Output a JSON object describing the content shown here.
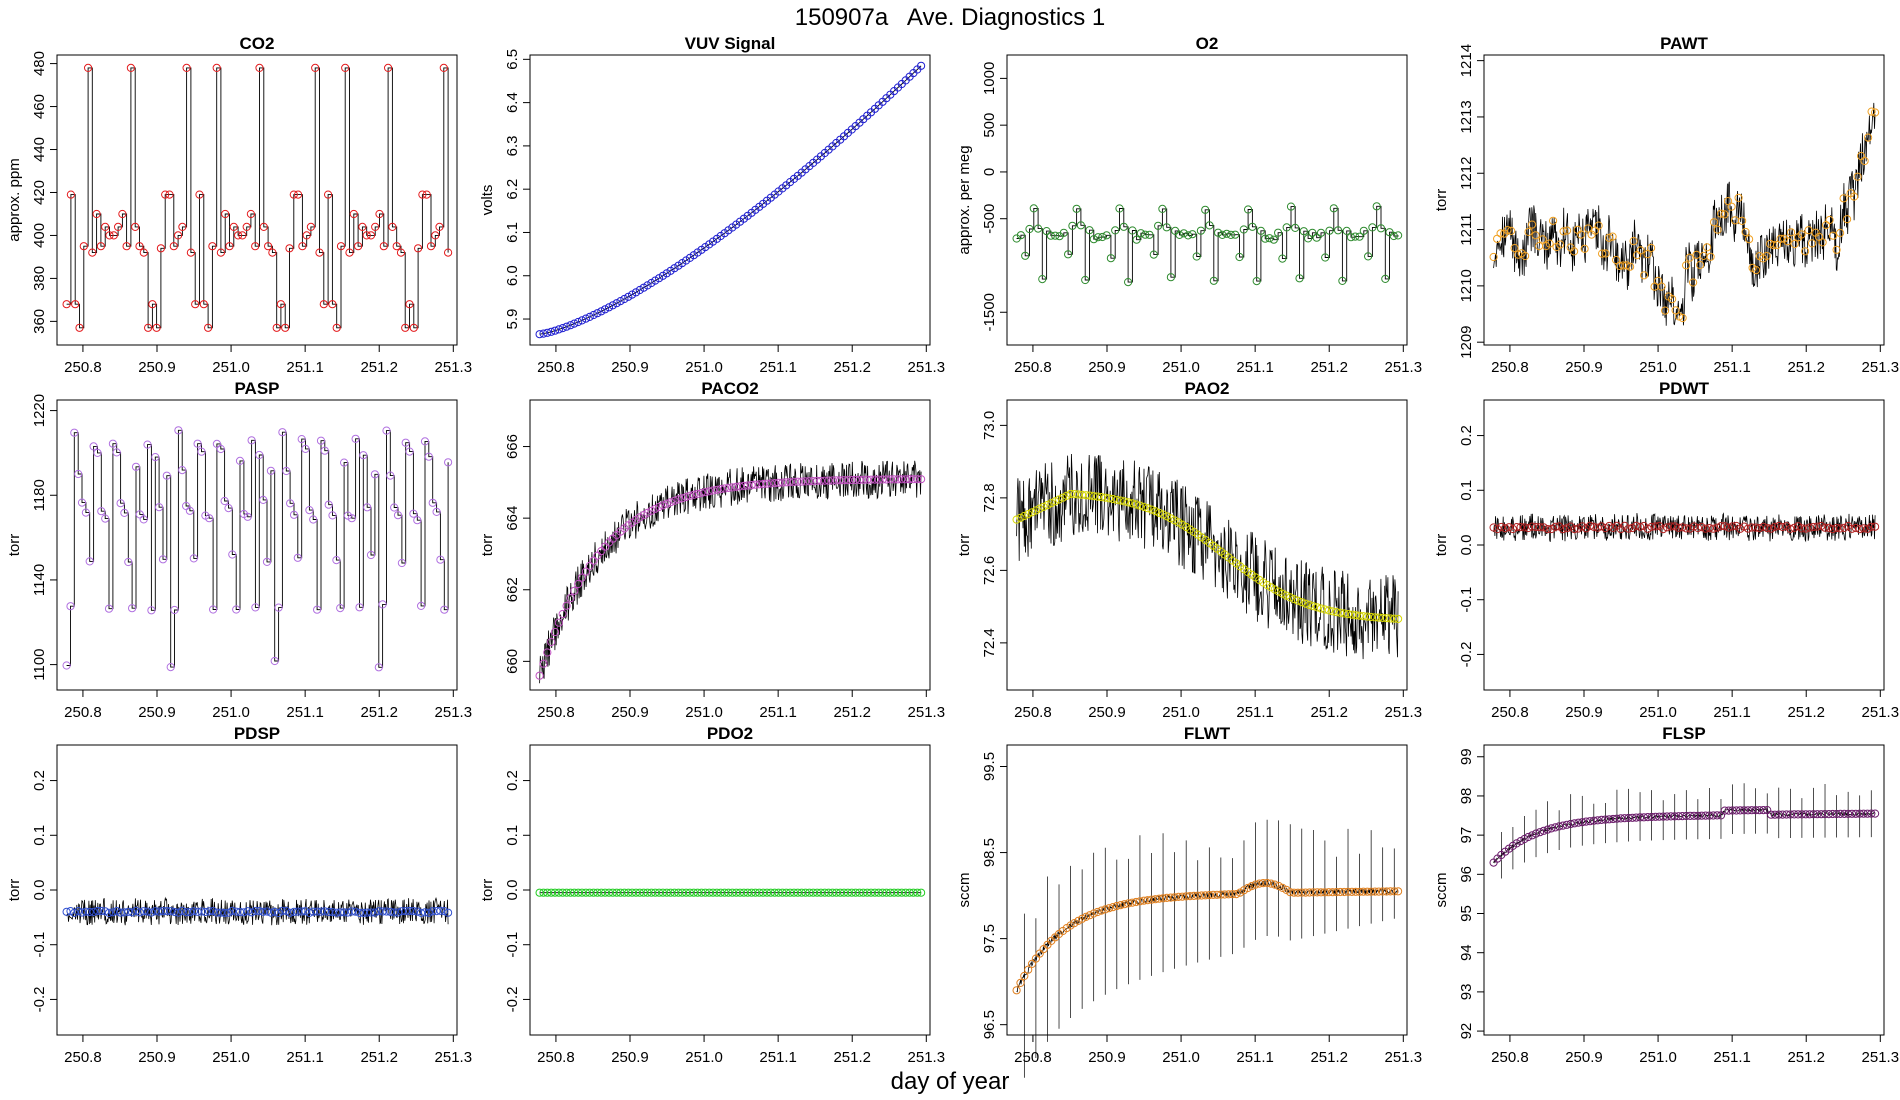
{
  "page": {
    "title": "150907a   Ave. Diagnostics 1",
    "xlabel": "day of year"
  },
  "chart_data": [
    {
      "type": "line",
      "title": "CO2",
      "ylabel": "approx. ppm",
      "xlim": [
        250.765,
        251.305
      ],
      "ylim": [
        349,
        484
      ],
      "yticks": [
        360,
        380,
        400,
        420,
        440,
        460,
        480
      ],
      "ytick_labels": [
        "360",
        "380",
        "400",
        "420",
        "440",
        "460",
        "480"
      ],
      "xticks": [
        250.8,
        250.9,
        251.0,
        251.1,
        251.2,
        251.3
      ],
      "xtick_labels": [
        "250.8",
        "250.9",
        "251.0",
        "251.1",
        "251.2",
        "251.3"
      ],
      "marker_color": "#e31a1c",
      "pattern": "co2",
      "x_start": 250.778,
      "x_end": 251.293,
      "n_points": 90
    },
    {
      "type": "line",
      "title": "VUV Signal",
      "ylabel": "volts",
      "xlim": [
        250.765,
        251.305
      ],
      "ylim": [
        5.84,
        6.51
      ],
      "yticks": [
        5.9,
        6.0,
        6.1,
        6.2,
        6.3,
        6.4,
        6.5
      ],
      "ytick_labels": [
        "5.9",
        "6.0",
        "6.1",
        "6.2",
        "6.3",
        "6.4",
        "6.5"
      ],
      "xticks": [
        250.8,
        250.9,
        251.0,
        251.1,
        251.2,
        251.3
      ],
      "xtick_labels": [
        "250.8",
        "250.9",
        "251.0",
        "251.1",
        "251.2",
        "251.3"
      ],
      "marker_color": "#1f1fd0",
      "pattern": "vuv",
      "x_start": 250.778,
      "x_end": 251.293,
      "n_points": 100
    },
    {
      "type": "line",
      "title": "O2",
      "ylabel": "approx. per meg",
      "xlim": [
        250.765,
        251.305
      ],
      "ylim": [
        -1850,
        1250
      ],
      "yticks": [
        -1500,
        -500,
        0,
        500,
        1000
      ],
      "ytick_labels": [
        "-1500",
        "-500",
        "0",
        "500",
        "1000"
      ],
      "xticks": [
        250.8,
        250.9,
        251.0,
        251.1,
        251.2,
        251.3
      ],
      "xtick_labels": [
        "250.8",
        "250.9",
        "251.0",
        "251.1",
        "251.2",
        "251.3"
      ],
      "marker_color": "#2e8b2e",
      "pattern": "o2",
      "x_start": 250.778,
      "x_end": 251.293,
      "n_points": 90
    },
    {
      "type": "line",
      "title": "PAWT",
      "ylabel": "torr",
      "xlim": [
        250.765,
        251.305
      ],
      "ylim": [
        1208.95,
        1214.1
      ],
      "yticks": [
        1209,
        1210,
        1211,
        1212,
        1213,
        1214
      ],
      "ytick_labels": [
        "1209",
        "1210",
        "1211",
        "1212",
        "1213",
        "1214"
      ],
      "xticks": [
        250.8,
        250.9,
        251.0,
        251.1,
        251.2,
        251.3
      ],
      "xtick_labels": [
        "250.8",
        "250.9",
        "251.0",
        "251.1",
        "251.2",
        "251.3"
      ],
      "marker_color": "#f0a020",
      "pattern": "pawt",
      "x_start": 250.778,
      "x_end": 251.293,
      "n_points": 110
    },
    {
      "type": "line",
      "title": "PASP",
      "ylabel": "torr",
      "xlim": [
        250.765,
        251.305
      ],
      "ylim": [
        1088,
        1225
      ],
      "yticks": [
        1100,
        1140,
        1180,
        1220
      ],
      "ytick_labels": [
        "1100",
        "1140",
        "1180",
        "1220"
      ],
      "xticks": [
        250.8,
        250.9,
        251.0,
        251.1,
        251.2,
        251.3
      ],
      "xtick_labels": [
        "250.8",
        "250.9",
        "251.0",
        "251.1",
        "251.2",
        "251.3"
      ],
      "marker_color": "#b070e0",
      "pattern": "pasp",
      "x_start": 250.778,
      "x_end": 251.293,
      "n_points": 100
    },
    {
      "type": "line",
      "title": "PACO2",
      "ylabel": "torr",
      "xlim": [
        250.765,
        251.305
      ],
      "ylim": [
        659.2,
        667.3
      ],
      "yticks": [
        660,
        662,
        664,
        666
      ],
      "ytick_labels": [
        "660",
        "662",
        "664",
        "666"
      ],
      "xticks": [
        250.8,
        250.9,
        251.0,
        251.1,
        251.2,
        251.3
      ],
      "xtick_labels": [
        "250.8",
        "250.9",
        "251.0",
        "251.1",
        "251.2",
        "251.3"
      ],
      "marker_color": "#c050c0",
      "pattern": "paco2",
      "x_start": 250.778,
      "x_end": 251.293,
      "n_points": 100
    },
    {
      "type": "line",
      "title": "PAO2",
      "ylabel": "torr",
      "xlim": [
        250.765,
        251.305
      ],
      "ylim": [
        72.27,
        73.07
      ],
      "yticks": [
        72.4,
        72.6,
        72.8,
        73.0
      ],
      "ytick_labels": [
        "72.4",
        "72.6",
        "72.8",
        "73.0"
      ],
      "xticks": [
        250.8,
        250.9,
        251.0,
        251.1,
        251.2,
        251.3
      ],
      "xtick_labels": [
        "250.8",
        "250.9",
        "251.0",
        "251.1",
        "251.2",
        "251.3"
      ],
      "marker_color": "#d8d800",
      "pattern": "pao2",
      "x_start": 250.778,
      "x_end": 251.293,
      "n_points": 100
    },
    {
      "type": "line",
      "title": "PDWT",
      "ylabel": "torr",
      "xlim": [
        250.765,
        251.305
      ],
      "ylim": [
        -0.265,
        0.265
      ],
      "yticks": [
        -0.2,
        -0.1,
        0.0,
        0.1,
        0.2
      ],
      "ytick_labels": [
        "-0.2",
        "-0.1",
        "0.0",
        "0.1",
        "0.2"
      ],
      "xticks": [
        250.8,
        250.9,
        251.0,
        251.1,
        251.2,
        251.3
      ],
      "xtick_labels": [
        "250.8",
        "250.9",
        "251.0",
        "251.1",
        "251.2",
        "251.3"
      ],
      "marker_color": "#b22222",
      "pattern": "pdwt",
      "x_start": 250.778,
      "x_end": 251.293,
      "n_points": 100
    },
    {
      "type": "line",
      "title": "PDSP",
      "ylabel": "torr",
      "xlim": [
        250.765,
        251.305
      ],
      "ylim": [
        -0.265,
        0.265
      ],
      "yticks": [
        -0.2,
        -0.1,
        0.0,
        0.1,
        0.2
      ],
      "ytick_labels": [
        "-0.2",
        "-0.1",
        "0.0",
        "0.1",
        "0.2"
      ],
      "xticks": [
        250.8,
        250.9,
        251.0,
        251.1,
        251.2,
        251.3
      ],
      "xtick_labels": [
        "250.8",
        "250.9",
        "251.0",
        "251.1",
        "251.2",
        "251.3"
      ],
      "marker_color": "#3050d0",
      "pattern": "pdsp",
      "x_start": 250.778,
      "x_end": 251.293,
      "n_points": 100
    },
    {
      "type": "line",
      "title": "PDO2",
      "ylabel": "torr",
      "xlim": [
        250.765,
        251.305
      ],
      "ylim": [
        -0.265,
        0.265
      ],
      "yticks": [
        -0.2,
        -0.1,
        0.0,
        0.1,
        0.2
      ],
      "ytick_labels": [
        "-0.2",
        "-0.1",
        "0.0",
        "0.1",
        "0.2"
      ],
      "xticks": [
        250.8,
        250.9,
        251.0,
        251.1,
        251.2,
        251.3
      ],
      "xtick_labels": [
        "250.8",
        "250.9",
        "251.0",
        "251.1",
        "251.2",
        "251.3"
      ],
      "marker_color": "#22cc22",
      "pattern": "pdo2",
      "x_start": 250.778,
      "x_end": 251.293,
      "n_points": 100
    },
    {
      "type": "line",
      "title": "FLWT",
      "ylabel": "sccm",
      "xlim": [
        250.765,
        251.305
      ],
      "ylim": [
        96.38,
        99.75
      ],
      "yticks": [
        96.5,
        97.5,
        98.5,
        99.5
      ],
      "ytick_labels": [
        "96.5",
        "97.5",
        "98.5",
        "99.5"
      ],
      "xticks": [
        250.8,
        250.9,
        251.0,
        251.1,
        251.2,
        251.3
      ],
      "xtick_labels": [
        "250.8",
        "250.9",
        "251.0",
        "251.1",
        "251.2",
        "251.3"
      ],
      "marker_color": "#e08020",
      "pattern": "flwt",
      "x_start": 250.778,
      "x_end": 251.293,
      "n_points": 100
    },
    {
      "type": "line",
      "title": "FLSP",
      "ylabel": "sccm",
      "xlim": [
        250.765,
        251.305
      ],
      "ylim": [
        91.9,
        99.3
      ],
      "yticks": [
        92,
        93,
        94,
        95,
        96,
        97,
        98,
        99
      ],
      "ytick_labels": [
        "92",
        "93",
        "94",
        "95",
        "96",
        "97",
        "98",
        "99"
      ],
      "xticks": [
        250.8,
        250.9,
        251.0,
        251.1,
        251.2,
        251.3
      ],
      "xtick_labels": [
        "250.8",
        "250.9",
        "251.0",
        "251.1",
        "251.2",
        "251.3"
      ],
      "marker_color": "#6a1a6a",
      "pattern": "flsp",
      "x_start": 250.778,
      "x_end": 251.293,
      "n_points": 100
    }
  ]
}
